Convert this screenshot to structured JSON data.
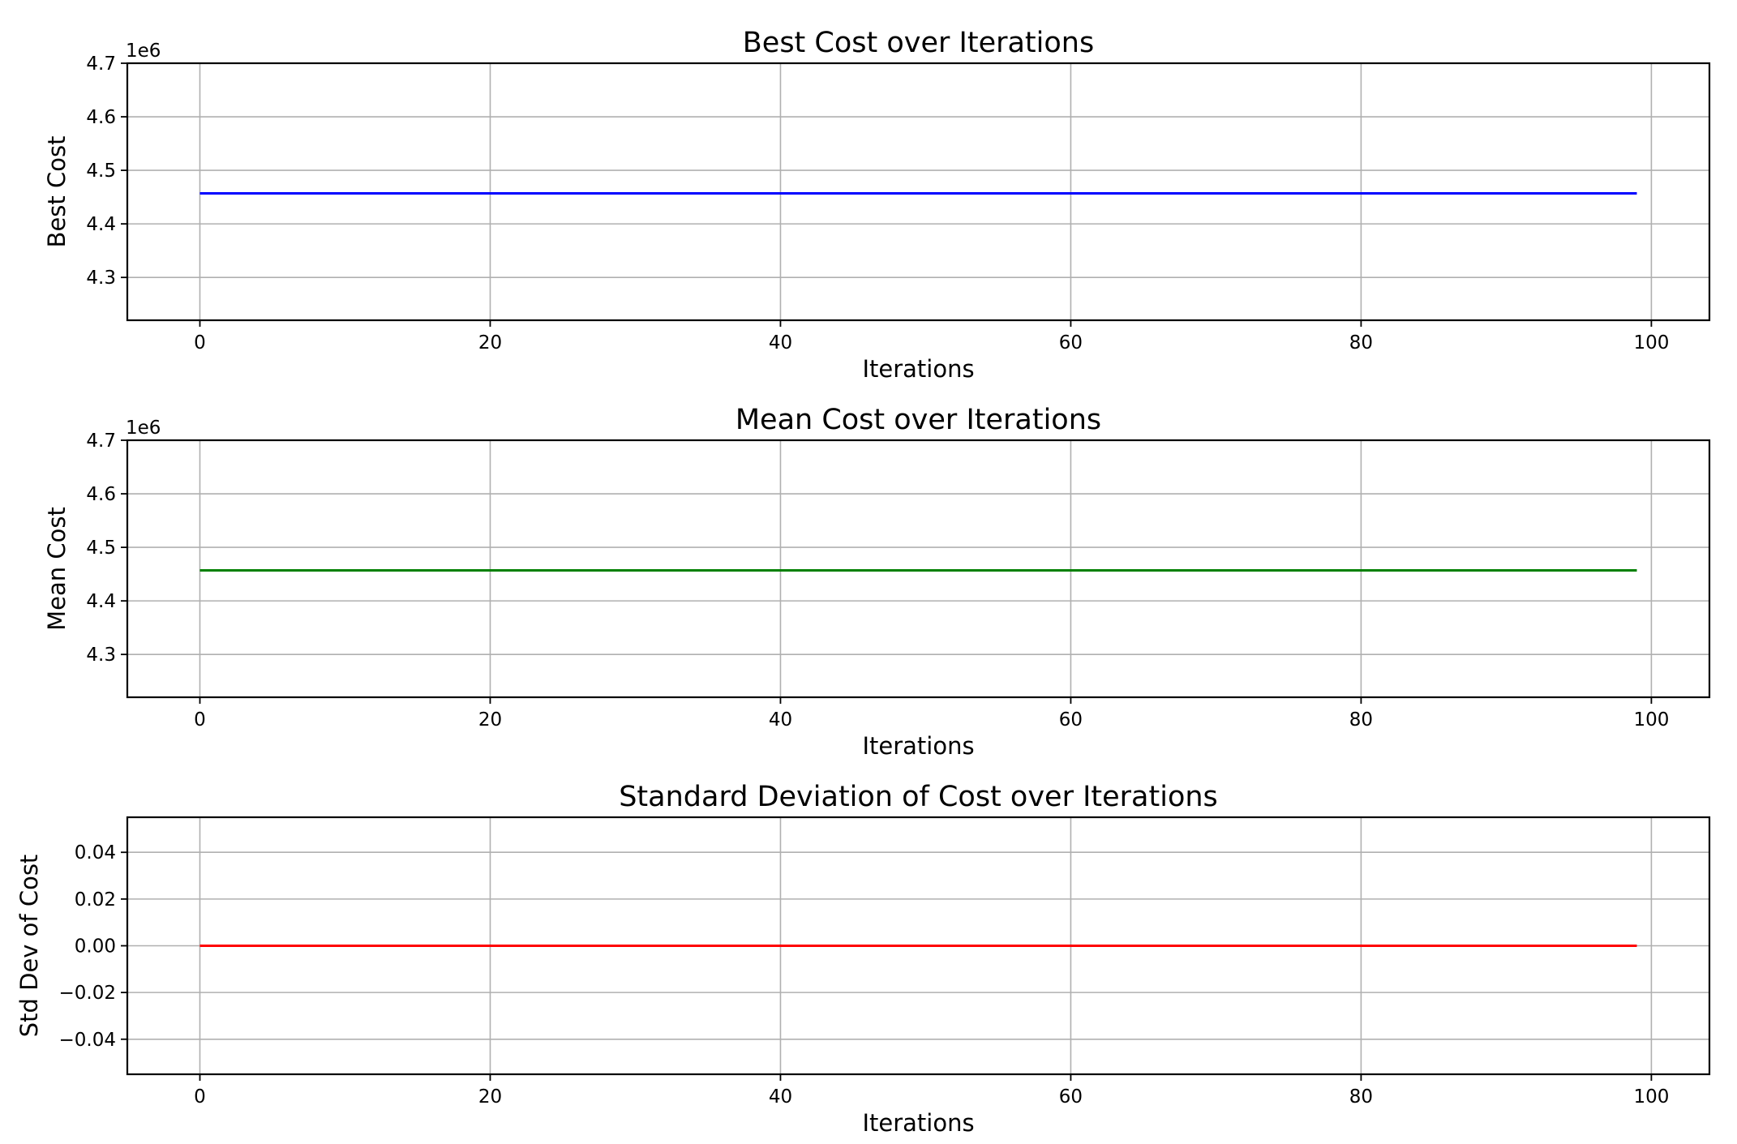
{
  "chart_data": [
    {
      "type": "line",
      "title": "Best Cost over Iterations",
      "xlabel": "Iterations",
      "ylabel": "Best Cost",
      "y_offset_label": "1e6",
      "x": {
        "min": 0,
        "max": 99,
        "step": 1
      },
      "xlim": [
        -5,
        104
      ],
      "ylim": [
        4.22,
        4.7
      ],
      "xticks": [
        0,
        20,
        40,
        60,
        80,
        100
      ],
      "yticks": [
        4.3,
        4.4,
        4.5,
        4.6,
        4.7
      ],
      "ytick_labels": [
        "4.3",
        "4.4",
        "4.5",
        "4.6",
        "4.7"
      ],
      "grid": true,
      "series": [
        {
          "color": "#0000ff",
          "y_constant": 4.457
        }
      ]
    },
    {
      "type": "line",
      "title": "Mean Cost over Iterations",
      "xlabel": "Iterations",
      "ylabel": "Mean Cost",
      "y_offset_label": "1e6",
      "x": {
        "min": 0,
        "max": 99,
        "step": 1
      },
      "xlim": [
        -5,
        104
      ],
      "ylim": [
        4.22,
        4.7
      ],
      "xticks": [
        0,
        20,
        40,
        60,
        80,
        100
      ],
      "yticks": [
        4.3,
        4.4,
        4.5,
        4.6,
        4.7
      ],
      "ytick_labels": [
        "4.3",
        "4.4",
        "4.5",
        "4.6",
        "4.7"
      ],
      "grid": true,
      "series": [
        {
          "color": "#008000",
          "y_constant": 4.457
        }
      ]
    },
    {
      "type": "line",
      "title": "Standard Deviation of Cost over Iterations",
      "xlabel": "Iterations",
      "ylabel": "Std Dev of Cost",
      "y_offset_label": "",
      "x": {
        "min": 0,
        "max": 99,
        "step": 1
      },
      "xlim": [
        -5,
        104
      ],
      "ylim": [
        -0.055,
        0.055
      ],
      "xticks": [
        0,
        20,
        40,
        60,
        80,
        100
      ],
      "yticks": [
        -0.04,
        -0.02,
        0.0,
        0.02,
        0.04
      ],
      "ytick_labels": [
        "−0.04",
        "−0.02",
        "0.00",
        "0.02",
        "0.04"
      ],
      "grid": true,
      "series": [
        {
          "color": "#ff0000",
          "y_constant": 0.0
        }
      ]
    }
  ]
}
